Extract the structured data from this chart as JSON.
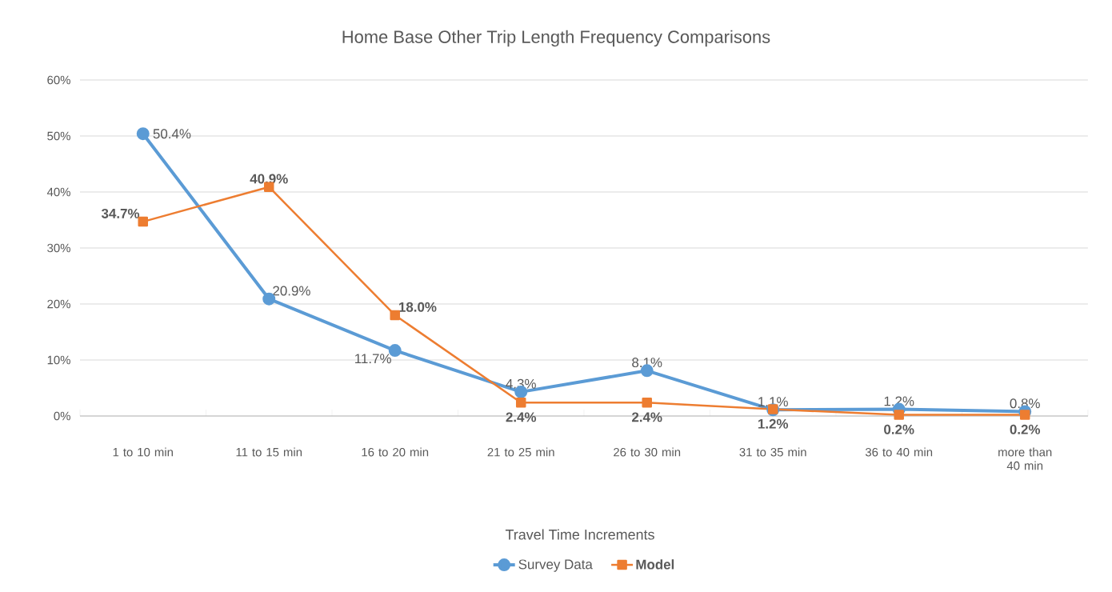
{
  "chart_data": {
    "type": "line",
    "title": "Home Base Other Trip Length Frequency Comparisons",
    "xlabel": "Travel Time Increments",
    "categories": [
      "1 to 10 min",
      "11 to 15 min",
      "16 to 20 min",
      "21 to 25 min",
      "26 to 30 min",
      "31 to 35 min",
      "36 to 40 min",
      "more than 40 min"
    ],
    "series": [
      {
        "name": "Survey Data",
        "color": "#5b9bd5",
        "marker": "circle",
        "values": [
          50.4,
          20.9,
          11.7,
          4.3,
          8.1,
          1.1,
          1.2,
          0.8
        ],
        "value_labels": [
          "50.4%",
          "20.9%",
          "11.7%",
          "4.3%",
          "8.1%",
          "1.1%",
          "1.2%",
          "0.8%"
        ]
      },
      {
        "name": "Model",
        "color": "#ed7d31",
        "marker": "square",
        "values": [
          34.7,
          40.9,
          18.0,
          2.4,
          2.4,
          1.2,
          0.2,
          0.2
        ],
        "value_labels": [
          "34.7%",
          "40.9%",
          "18.0%",
          "2.4%",
          "2.4%",
          "1.2%",
          "0.2%",
          "0.2%"
        ]
      }
    ],
    "ylim": [
      0,
      60
    ],
    "yticks": [
      {
        "value": 0,
        "label": "0%"
      },
      {
        "value": 10,
        "label": "10%"
      },
      {
        "value": 20,
        "label": "20%"
      },
      {
        "value": 30,
        "label": "30%"
      },
      {
        "value": 40,
        "label": "40%"
      },
      {
        "value": 50,
        "label": "50%"
      },
      {
        "value": 60,
        "label": "60%"
      }
    ],
    "grid": "y",
    "legend": "bottom"
  }
}
